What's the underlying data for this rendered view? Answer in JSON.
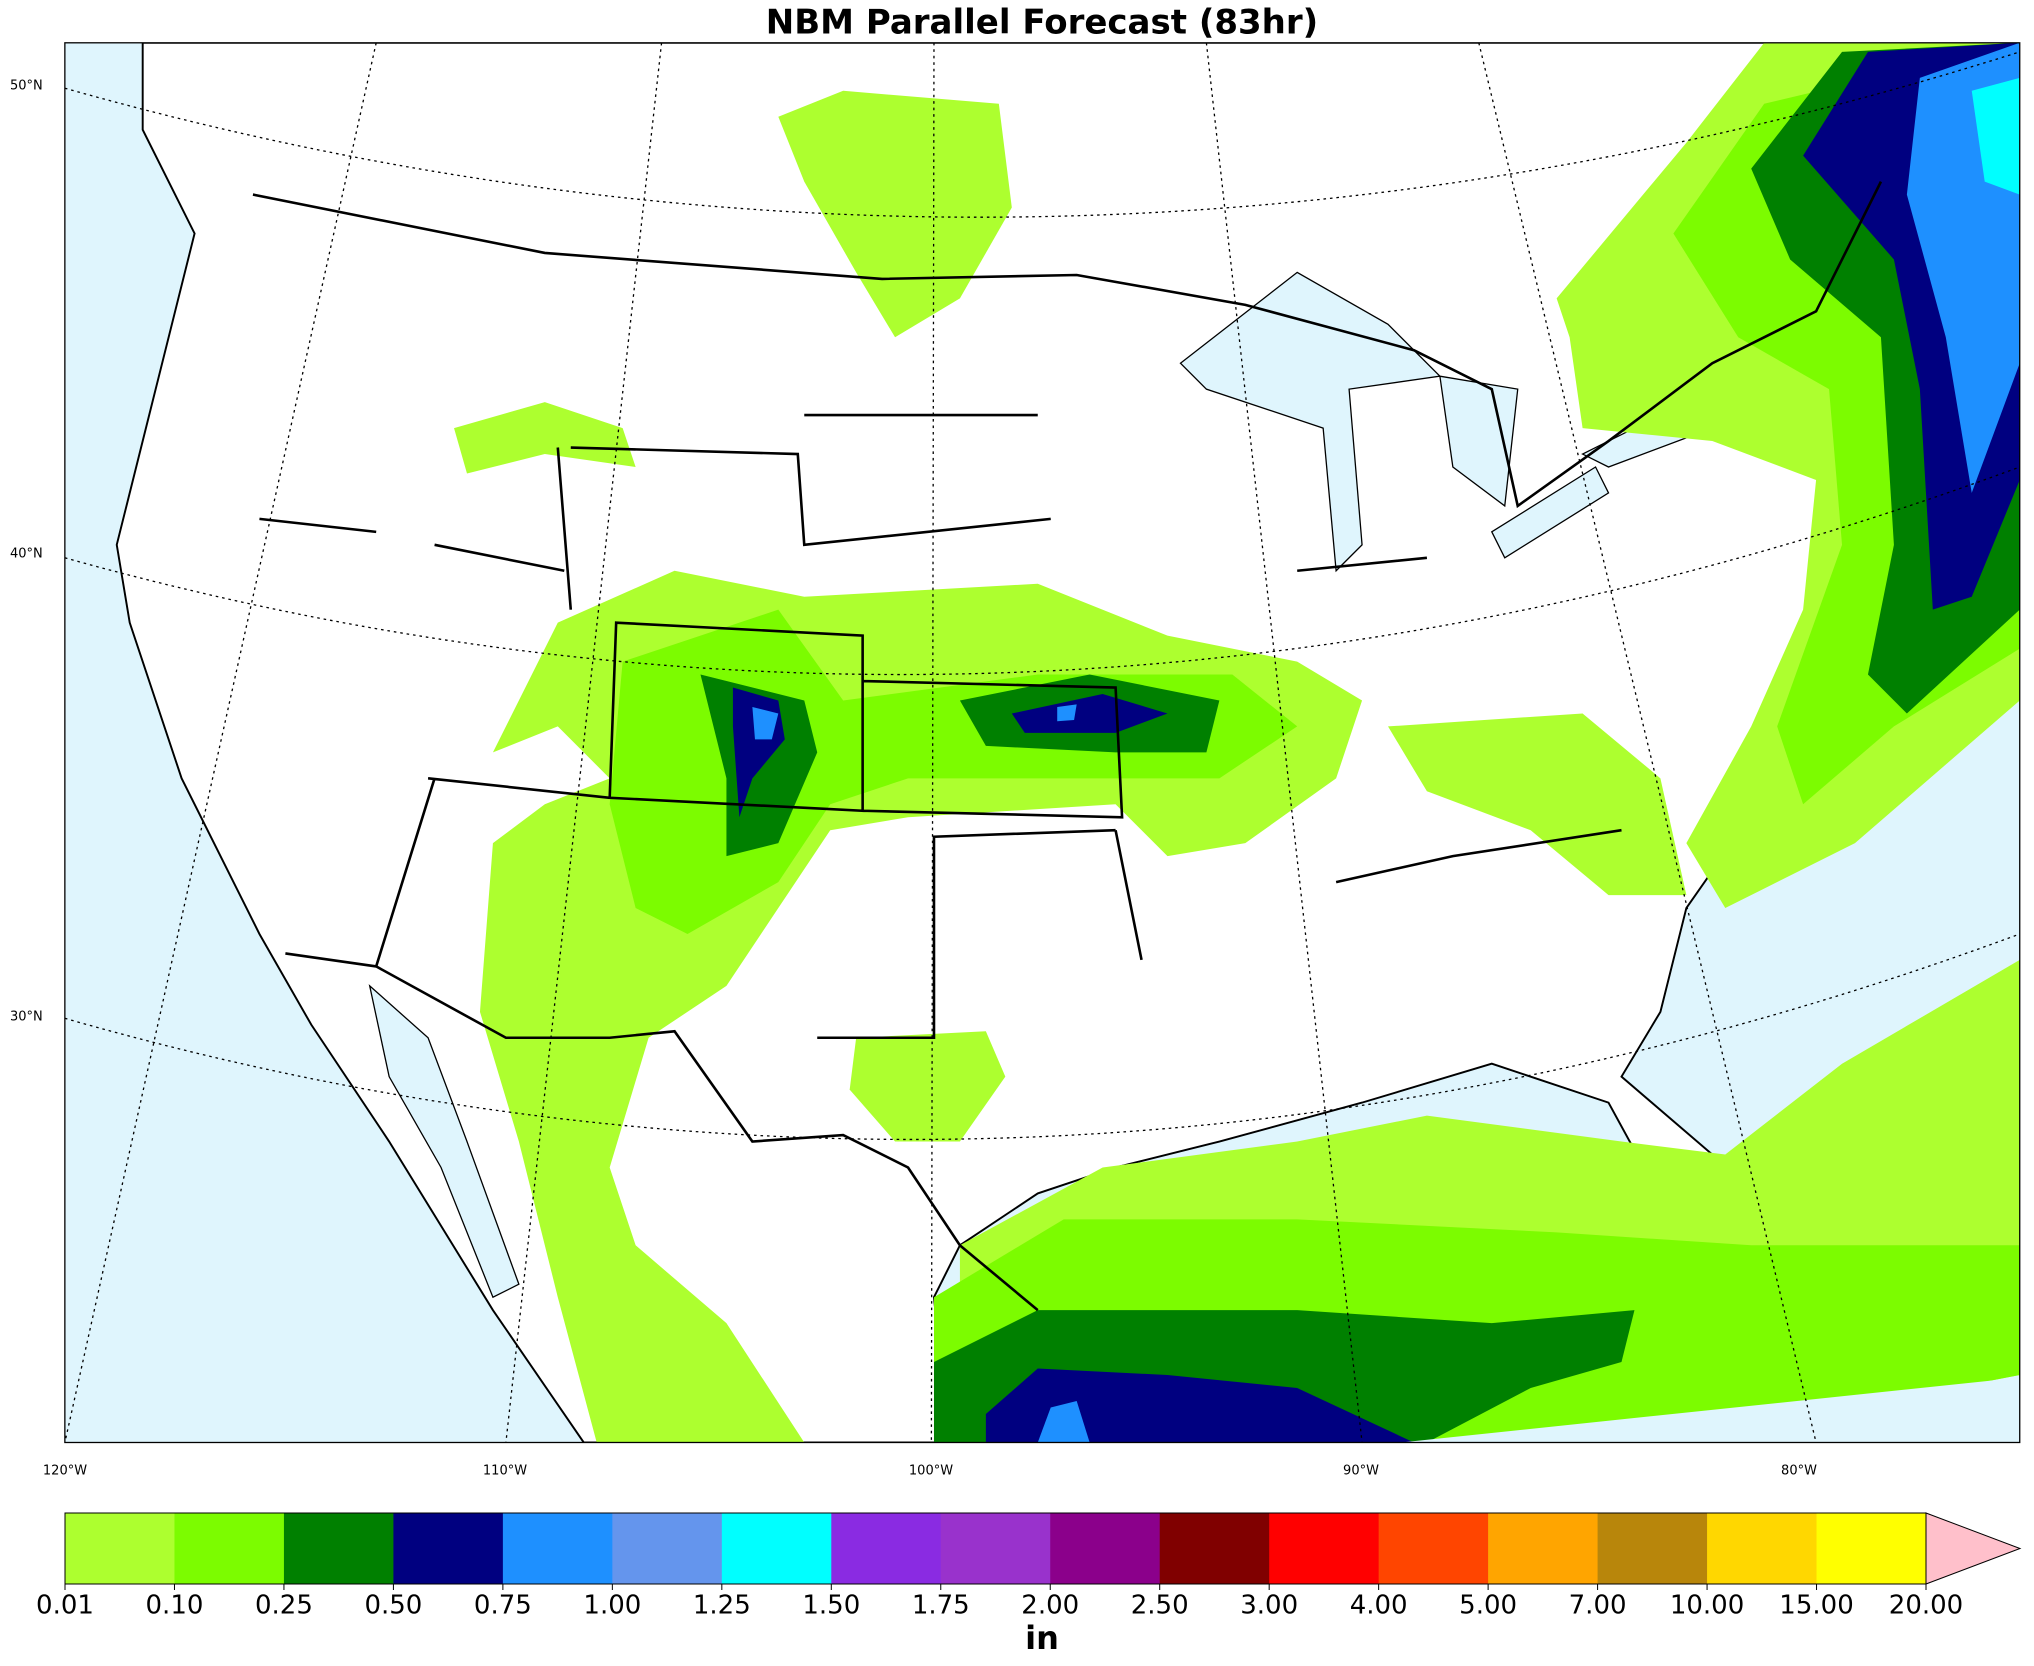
{
  "header": {
    "title": "NBM Parallel Forecast (83hr)"
  },
  "map": {
    "lat_labels": [
      "50°N",
      "40°N",
      "30°N"
    ],
    "lon_labels": [
      "120°W",
      "110°W",
      "100°W",
      "90°W",
      "80°W"
    ]
  },
  "colorbar": {
    "unit": "in",
    "colors": [
      "#adff2f",
      "#7cfc00",
      "#008000",
      "#000080",
      "#1e90ff",
      "#6495ed",
      "#00ffff",
      "#8a2be2",
      "#9932cc",
      "#8b008b",
      "#800000",
      "#ff0000",
      "#ff4500",
      "#ffa500",
      "#b8860b",
      "#ffd700",
      "#ffff00",
      "#ffc0cb"
    ],
    "ticks": [
      {
        "value": 0.01,
        "label": "0.01"
      },
      {
        "value": 0.1,
        "label": "0.10"
      },
      {
        "value": 0.25,
        "label": "0.25"
      },
      {
        "value": 0.5,
        "label": "0.50"
      },
      {
        "value": 0.75,
        "label": "0.75"
      },
      {
        "value": 1,
        "label": "1.00"
      },
      {
        "value": 1.25,
        "label": "1.25"
      },
      {
        "value": 1.5,
        "label": "1.50"
      },
      {
        "value": 1.75,
        "label": "1.75"
      },
      {
        "value": 2,
        "label": "2.00"
      },
      {
        "value": 2.5,
        "label": "2.50"
      },
      {
        "value": 3,
        "label": "3.00"
      },
      {
        "value": 4,
        "label": "4.00"
      },
      {
        "value": 5,
        "label": "5.00"
      },
      {
        "value": 7,
        "label": "7.00"
      },
      {
        "value": 10,
        "label": "10.00"
      },
      {
        "value": 15,
        "label": "15.00"
      },
      {
        "value": 20,
        "label": "20.00"
      }
    ]
  }
}
